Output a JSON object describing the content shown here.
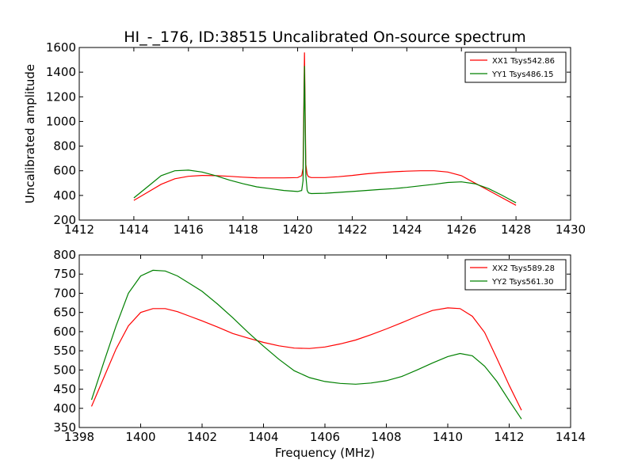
{
  "chart_data": [
    {
      "type": "line",
      "title": "HI_-_176, ID:38515 Uncalibrated On-source spectrum",
      "xlabel": "",
      "ylabel": "Uncalibrated amplitude",
      "xlim": [
        1412,
        1430
      ],
      "ylim": [
        200,
        1600
      ],
      "xticks": [
        1412,
        1414,
        1416,
        1418,
        1420,
        1422,
        1424,
        1426,
        1428,
        1430
      ],
      "yticks": [
        200,
        400,
        600,
        800,
        1000,
        1200,
        1400,
        1600
      ],
      "grid": false,
      "legend_position": "top-right",
      "series": [
        {
          "name": "XX1 Tsys542.86",
          "color": "#ff0000",
          "x": [
            1414.0,
            1414.5,
            1415.0,
            1415.5,
            1416.0,
            1416.5,
            1417.0,
            1417.5,
            1418.0,
            1418.5,
            1419.0,
            1419.5,
            1420.0,
            1420.15,
            1420.2,
            1420.25,
            1420.3,
            1420.35,
            1420.4,
            1420.5,
            1421.0,
            1421.5,
            1422.0,
            1422.5,
            1423.0,
            1423.5,
            1424.0,
            1424.5,
            1425.0,
            1425.5,
            1426.0,
            1426.5,
            1427.0,
            1427.5,
            1428.0
          ],
          "y": [
            360,
            425,
            490,
            535,
            555,
            562,
            560,
            555,
            548,
            543,
            542,
            542,
            545,
            560,
            620,
            1560,
            650,
            570,
            552,
            545,
            545,
            552,
            562,
            575,
            585,
            592,
            597,
            600,
            600,
            590,
            560,
            500,
            440,
            380,
            320
          ]
        },
        {
          "name": "YY1 Tsys486.15",
          "color": "#008000",
          "x": [
            1414.0,
            1414.5,
            1415.0,
            1415.5,
            1416.0,
            1416.5,
            1417.0,
            1417.5,
            1418.0,
            1418.5,
            1419.0,
            1419.5,
            1420.0,
            1420.15,
            1420.2,
            1420.25,
            1420.3,
            1420.35,
            1420.4,
            1420.5,
            1421.0,
            1421.5,
            1422.0,
            1422.5,
            1423.0,
            1423.5,
            1424.0,
            1424.5,
            1425.0,
            1425.5,
            1426.0,
            1426.5,
            1427.0,
            1427.5,
            1428.0
          ],
          "y": [
            380,
            470,
            560,
            600,
            605,
            590,
            560,
            525,
            495,
            470,
            455,
            440,
            432,
            440,
            520,
            1450,
            560,
            440,
            420,
            415,
            418,
            425,
            432,
            440,
            448,
            455,
            465,
            478,
            490,
            505,
            510,
            495,
            455,
            400,
            340
          ]
        }
      ]
    },
    {
      "type": "line",
      "title": "",
      "xlabel": "Frequency (MHz)",
      "ylabel": "",
      "xlim": [
        1398,
        1414
      ],
      "ylim": [
        350,
        800
      ],
      "xticks": [
        1398,
        1400,
        1402,
        1404,
        1406,
        1408,
        1410,
        1412,
        1414
      ],
      "yticks": [
        350,
        400,
        450,
        500,
        550,
        600,
        650,
        700,
        750,
        800
      ],
      "grid": false,
      "legend_position": "top-right",
      "series": [
        {
          "name": "XX2 Tsys589.28",
          "color": "#ff0000",
          "x": [
            1398.4,
            1398.8,
            1399.2,
            1399.6,
            1400.0,
            1400.4,
            1400.8,
            1401.2,
            1401.6,
            1402.0,
            1402.5,
            1403.0,
            1403.5,
            1404.0,
            1404.5,
            1405.0,
            1405.5,
            1406.0,
            1406.5,
            1407.0,
            1407.5,
            1408.0,
            1408.5,
            1409.0,
            1409.5,
            1410.0,
            1410.4,
            1410.8,
            1411.2,
            1411.6,
            1412.0,
            1412.4
          ],
          "y": [
            405,
            480,
            555,
            615,
            650,
            660,
            660,
            652,
            640,
            628,
            612,
            595,
            583,
            572,
            563,
            557,
            556,
            560,
            568,
            578,
            592,
            607,
            623,
            640,
            655,
            662,
            660,
            640,
            598,
            530,
            460,
            395
          ]
        },
        {
          "name": "YY2 Tsys561.30",
          "color": "#008000",
          "x": [
            1398.4,
            1398.8,
            1399.2,
            1399.6,
            1400.0,
            1400.4,
            1400.8,
            1401.2,
            1401.6,
            1402.0,
            1402.5,
            1403.0,
            1403.5,
            1404.0,
            1404.5,
            1405.0,
            1405.5,
            1406.0,
            1406.5,
            1407.0,
            1407.5,
            1408.0,
            1408.5,
            1409.0,
            1409.5,
            1410.0,
            1410.4,
            1410.8,
            1411.2,
            1411.6,
            1412.0,
            1412.4
          ],
          "y": [
            422,
            520,
            615,
            700,
            745,
            760,
            758,
            745,
            725,
            705,
            672,
            636,
            598,
            562,
            528,
            498,
            480,
            470,
            465,
            463,
            466,
            472,
            483,
            500,
            518,
            535,
            543,
            537,
            510,
            470,
            420,
            372
          ]
        }
      ]
    }
  ]
}
